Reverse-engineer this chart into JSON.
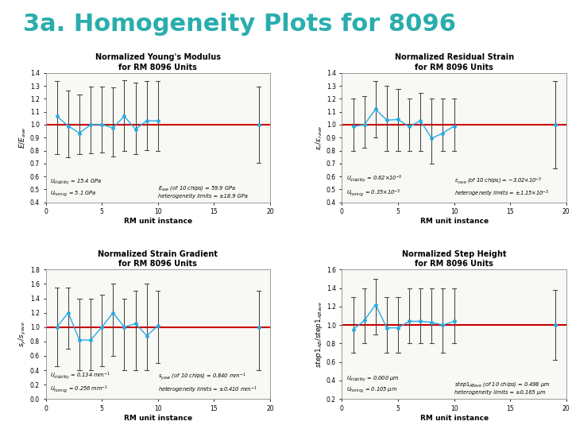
{
  "title": "3a. Homogeneity Plots for 8096",
  "title_color": "#2aadad",
  "title_fontsize": 22,
  "background_color": "#ffffff",
  "subplots": [
    {
      "title": "Normalized Young's Modulus\nfor RM 8096 Units",
      "ylabel": "$E/E_{ave}$",
      "xlabel": "RM unit instance",
      "ylim": [
        0.4,
        1.4
      ],
      "xlim": [
        0,
        20
      ],
      "xticks": [
        0,
        5,
        10,
        15,
        20
      ],
      "yticks": [
        0.4,
        0.5,
        0.6,
        0.7,
        0.8,
        0.9,
        1.0,
        1.1,
        1.2,
        1.3,
        1.4
      ],
      "x": [
        1,
        2,
        3,
        4,
        5,
        6,
        7,
        8,
        9,
        10,
        19
      ],
      "y": [
        1.065,
        0.99,
        0.935,
        1.0,
        1.002,
        0.975,
        1.065,
        0.965,
        1.03,
        1.03,
        1.0
      ],
      "yerr_low": [
        0.295,
        0.245,
        0.165,
        0.22,
        0.215,
        0.22,
        0.265,
        0.195,
        0.225,
        0.23,
        0.295
      ],
      "yerr_high": [
        0.275,
        0.275,
        0.295,
        0.295,
        0.295,
        0.315,
        0.28,
        0.36,
        0.305,
        0.305,
        0.295
      ],
      "annotation_left": "$U_{stability}$ = 15.4 GPa\n$U_{homog}$ = 5.1 GPa",
      "annotation_right": "$E_{ave}$ (of 10 chips) = 59.9 GPa\nheterogeneity limits = ±18.9 GPa"
    },
    {
      "title": "Normalized Residual Strain\nfor RM 8096 Units",
      "ylabel": "$\\varepsilon_r / \\varepsilon_{rave}$",
      "xlabel": "RM unit instance",
      "ylim": [
        0.4,
        1.4
      ],
      "xlim": [
        0,
        20
      ],
      "xticks": [
        0,
        5,
        10,
        15,
        20
      ],
      "yticks": [
        0.4,
        0.5,
        0.6,
        0.7,
        0.8,
        0.9,
        1.0,
        1.1,
        1.2,
        1.3,
        1.4
      ],
      "x": [
        1,
        2,
        3,
        4,
        5,
        6,
        7,
        8,
        9,
        10,
        19
      ],
      "y": [
        0.985,
        1.0,
        1.12,
        1.035,
        1.04,
        0.985,
        1.03,
        0.895,
        0.935,
        0.99,
        1.0
      ],
      "yerr_low": [
        0.185,
        0.18,
        0.22,
        0.235,
        0.24,
        0.185,
        0.23,
        0.195,
        0.135,
        0.19,
        0.34
      ],
      "yerr_high": [
        0.215,
        0.22,
        0.22,
        0.265,
        0.235,
        0.215,
        0.215,
        0.305,
        0.265,
        0.21,
        0.34
      ],
      "annotation_left": "$U_{stability}$ = 0.62×10$^{-3}$\n$U_{homog}$ = 0.35×10$^{-3}$",
      "annotation_right": "$\\varepsilon_{rave}$ (of 10 chips) = −3.02×10$^{-3}$\nheterogeneity limits = ±1.15×10$^{-3}$"
    },
    {
      "title": "Normalized Strain Gradient\nfor RM 8096 Units",
      "ylabel": "$s_y / s_{yave}$",
      "xlabel": "RM unit instance",
      "ylim": [
        0.0,
        1.8
      ],
      "xlim": [
        0,
        20
      ],
      "xticks": [
        0,
        5,
        10,
        15,
        20
      ],
      "yticks": [
        0.0,
        0.2,
        0.4,
        0.6,
        0.8,
        1.0,
        1.2,
        1.4,
        1.6,
        1.8
      ],
      "x": [
        1,
        2,
        3,
        4,
        5,
        6,
        7,
        8,
        9,
        10,
        19
      ],
      "y": [
        1.0,
        1.2,
        0.82,
        0.82,
        1.0,
        1.2,
        1.0,
        1.05,
        0.88,
        1.02,
        1.0
      ],
      "yerr_low": [
        0.55,
        0.5,
        0.42,
        0.42,
        0.55,
        0.6,
        0.6,
        0.65,
        0.48,
        0.52,
        0.6
      ],
      "yerr_high": [
        0.55,
        0.35,
        0.58,
        0.58,
        0.45,
        0.4,
        0.4,
        0.45,
        0.72,
        0.48,
        0.5
      ],
      "annotation_left": "$U_{stability}$ = 0.134 mm$^{-1}$\n$U_{homog}$ = 0.256 mm$^{-1}$",
      "annotation_right": "$s_{yave}$ (of 10 chips) = 0.840 mm$^{-1}$\nheterogeneity limits = ±0.410 mm$^{-1}$"
    },
    {
      "title": "Normalized Step Height\nfor RM 8096 Units",
      "ylabel": "$step1_{AB}/step1_{ABave}$",
      "xlabel": "RM unit instance",
      "ylim": [
        0.2,
        1.6
      ],
      "xlim": [
        0,
        20
      ],
      "xticks": [
        0,
        5,
        10,
        15,
        20
      ],
      "yticks": [
        0.2,
        0.4,
        0.6,
        0.8,
        1.0,
        1.2,
        1.4,
        1.6
      ],
      "x": [
        1,
        2,
        3,
        4,
        5,
        6,
        7,
        8,
        9,
        10,
        19
      ],
      "y": [
        0.95,
        1.05,
        1.22,
        0.97,
        0.97,
        1.04,
        1.04,
        1.03,
        1.0,
        1.04,
        1.0
      ],
      "yerr_low": [
        0.25,
        0.25,
        0.32,
        0.27,
        0.27,
        0.24,
        0.24,
        0.23,
        0.3,
        0.24,
        0.38
      ],
      "yerr_high": [
        0.35,
        0.35,
        0.28,
        0.33,
        0.33,
        0.36,
        0.36,
        0.37,
        0.4,
        0.36,
        0.38
      ],
      "annotation_left": "$U_{stability}$ = 0.000 μm\n$U_{homog}$ = 0.105 μm",
      "annotation_right": "$step1_{ABave}$ (of 10 chips) = 0.498 μm\nheterogeneity limits = ±0.165 μm"
    }
  ],
  "point_color": "#29abe2",
  "line_color": "#cc0000",
  "err_color": "#444444",
  "plot_bg": "#f8f8f4"
}
